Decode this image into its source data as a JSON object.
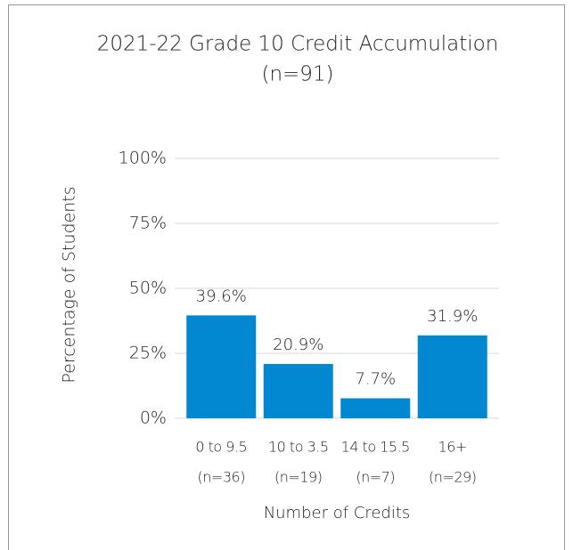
{
  "chart_data": {
    "type": "bar",
    "title": "2021-22 Grade 10 Credit Accumulation",
    "subtitle": "(n=91)",
    "x_label": "Number of Credits",
    "y_label": "Percentage of Students",
    "categories": [
      [
        "0 to 9.5",
        "(n=36)"
      ],
      [
        "10 to 3.5",
        "(n=19)"
      ],
      [
        "14 to 15.5",
        "(n=7)"
      ],
      [
        "16+",
        "(n=29)"
      ]
    ],
    "values": [
      39.6,
      20.9,
      7.7,
      31.9
    ],
    "value_labels": [
      "39.6%",
      "20.9%",
      "7.7%",
      "31.9%"
    ],
    "color": "#0288d1",
    "ylim": [
      0,
      100
    ],
    "yticks": [
      {
        "value": 0,
        "label": "0%"
      },
      {
        "value": 25,
        "label": "25%"
      },
      {
        "value": 50,
        "label": "50%"
      },
      {
        "value": 75,
        "label": "75%"
      },
      {
        "value": 100,
        "label": "100%"
      }
    ],
    "grid": true
  }
}
